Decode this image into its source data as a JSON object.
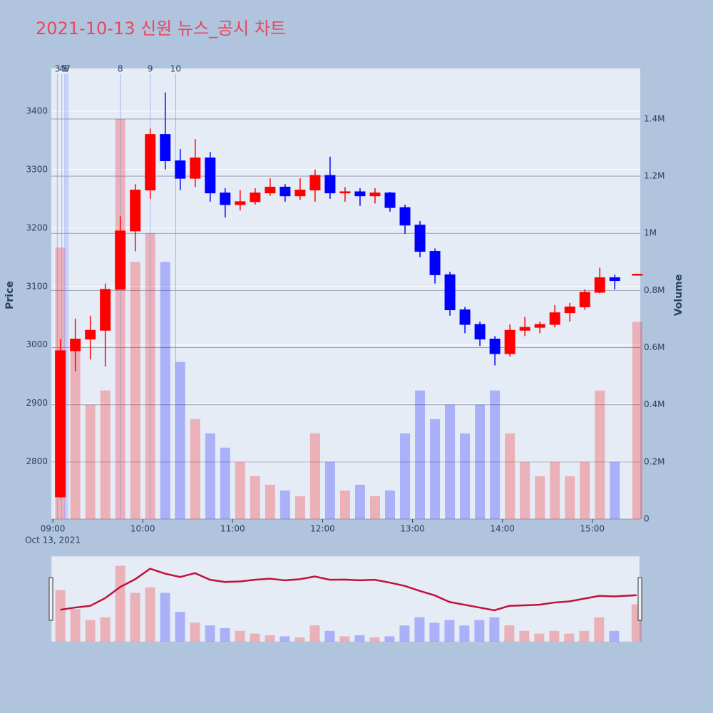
{
  "chart_data": {
    "type": "candlestick",
    "title": "2021-10-13 신원 뉴스_공시 차트",
    "x_date_label": "Oct 13, 2021",
    "yaxis_title": "Price",
    "y2axis_title": "Volume",
    "increasing_color": "#ff0000",
    "decreasing_color": "#0000ff",
    "range_slider": true,
    "x": [
      "2021-10-13 09:05",
      "2021-10-13 09:15",
      "2021-10-13 09:25",
      "2021-10-13 09:35",
      "2021-10-13 09:45",
      "2021-10-13 09:55",
      "2021-10-13 10:05",
      "2021-10-13 10:15",
      "2021-10-13 10:25",
      "2021-10-13 10:35",
      "2021-10-13 10:45",
      "2021-10-13 10:55",
      "2021-10-13 11:05",
      "2021-10-13 11:15",
      "2021-10-13 11:25",
      "2021-10-13 11:35",
      "2021-10-13 11:45",
      "2021-10-13 11:55",
      "2021-10-13 12:05",
      "2021-10-13 12:15",
      "2021-10-13 12:25",
      "2021-10-13 12:35",
      "2021-10-13 12:45",
      "2021-10-13 12:55",
      "2021-10-13 13:05",
      "2021-10-13 13:15",
      "2021-10-13 13:25",
      "2021-10-13 13:35",
      "2021-10-13 13:45",
      "2021-10-13 13:55",
      "2021-10-13 14:05",
      "2021-10-13 14:15",
      "2021-10-13 14:25",
      "2021-10-13 14:35",
      "2021-10-13 14:45",
      "2021-10-13 14:55",
      "2021-10-13 15:05",
      "2021-10-13 15:15",
      "2021-10-13 15:30"
    ],
    "open": [
      2740,
      2990,
      3010,
      3025,
      3095,
      3195,
      3265,
      3360,
      3315,
      3285,
      3320,
      3260,
      3240,
      3245,
      3260,
      3270,
      3255,
      3265,
      3290,
      3260,
      3262,
      3255,
      3260,
      3235,
      3205,
      3160,
      3120,
      3060,
      3035,
      3010,
      2985,
      3025,
      3030,
      3035,
      3055,
      3065,
      3090,
      3115,
      3120
    ],
    "high": [
      3010,
      3045,
      3050,
      3105,
      3220,
      3275,
      3370,
      3432,
      3335,
      3352,
      3330,
      3268,
      3265,
      3268,
      3285,
      3275,
      3285,
      3300,
      3322,
      3270,
      3268,
      3268,
      3262,
      3240,
      3212,
      3165,
      3125,
      3065,
      3040,
      3015,
      3035,
      3048,
      3040,
      3068,
      3072,
      3095,
      3132,
      3120,
      3122
    ],
    "low": [
      2738,
      2955,
      2975,
      2963,
      3095,
      3160,
      3250,
      3300,
      3265,
      3270,
      3245,
      3218,
      3230,
      3240,
      3255,
      3245,
      3248,
      3245,
      3250,
      3245,
      3238,
      3242,
      3228,
      3190,
      3150,
      3105,
      3050,
      3020,
      2998,
      2965,
      2980,
      3015,
      3020,
      3030,
      3040,
      3060,
      3088,
      3095,
      3120
    ],
    "close": [
      2990,
      3010,
      3025,
      3095,
      3195,
      3265,
      3360,
      3315,
      3285,
      3320,
      3260,
      3240,
      3245,
      3260,
      3270,
      3255,
      3265,
      3290,
      3260,
      3262,
      3255,
      3260,
      3235,
      3205,
      3160,
      3120,
      3060,
      3035,
      3010,
      2985,
      3025,
      3030,
      3035,
      3055,
      3065,
      3090,
      3115,
      3110,
      3121
    ],
    "volume": [
      950000,
      600000,
      400000,
      450000,
      1400000,
      900000,
      1000000,
      900000,
      550000,
      350000,
      300000,
      250000,
      200000,
      150000,
      120000,
      100000,
      80000,
      300000,
      200000,
      100000,
      120000,
      80000,
      100000,
      300000,
      450000,
      350000,
      400000,
      300000,
      400000,
      450000,
      300000,
      200000,
      150000,
      200000,
      150000,
      200000,
      450000,
      200000,
      690000
    ],
    "xlim": [
      "2021-10-13 08:59",
      "2021-10-13 15:32"
    ],
    "xticks": [
      {
        "value": "2021-10-13 09:00",
        "label": "09:00"
      },
      {
        "value": "2021-10-13 10:00",
        "label": "10:00"
      },
      {
        "value": "2021-10-13 11:00",
        "label": "11:00"
      },
      {
        "value": "2021-10-13 12:00",
        "label": "12:00"
      },
      {
        "value": "2021-10-13 13:00",
        "label": "13:00"
      },
      {
        "value": "2021-10-13 14:00",
        "label": "14:00"
      },
      {
        "value": "2021-10-13 15:00",
        "label": "15:00"
      }
    ],
    "ylim": [
      2702,
      3473
    ],
    "yticks": [
      2800,
      2900,
      3000,
      3100,
      3200,
      3300,
      3400
    ],
    "y2lim": [
      0,
      1577000
    ],
    "y2ticks": [
      0,
      {
        "value": 200000,
        "label": "0.2M"
      },
      {
        "value": 400000,
        "label": "0.4M"
      },
      {
        "value": 600000,
        "label": "0.6M"
      },
      {
        "value": 800000,
        "label": "0.8M"
      },
      {
        "value": 1000000,
        "label": "1M"
      },
      {
        "value": 1200000,
        "label": "1.2M"
      },
      {
        "value": 1400000,
        "label": "1.4M"
      }
    ],
    "annotations": [
      {
        "x": "2021-10-13 09:03",
        "label": "3"
      },
      {
        "x": "2021-10-13 09:06",
        "label": "4"
      },
      {
        "x": "2021-10-13 09:08",
        "label": "5"
      },
      {
        "x": "2021-10-13 09:09",
        "label": "6"
      },
      {
        "x": "2021-10-13 09:10",
        "label": "7"
      },
      {
        "x": "2021-10-13 09:45",
        "label": "8"
      },
      {
        "x": "2021-10-13 10:05",
        "label": "9"
      },
      {
        "x": "2021-10-13 10:22",
        "label": "10"
      }
    ]
  }
}
